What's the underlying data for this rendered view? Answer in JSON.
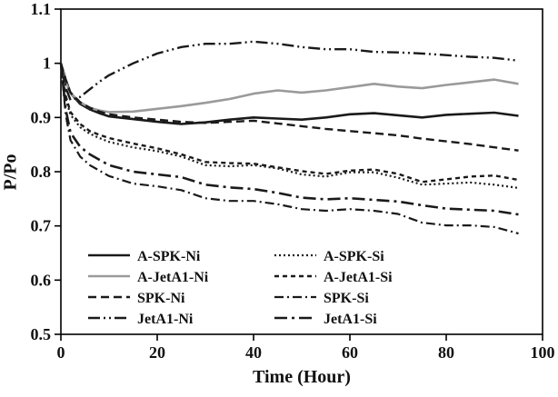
{
  "chart_data": {
    "type": "line",
    "title": "",
    "xlabel": "Time (Hour)",
    "ylabel": "P/Po",
    "xlim": [
      0,
      100
    ],
    "ylim": [
      0.5,
      1.1
    ],
    "xticks": [
      0,
      20,
      40,
      60,
      80,
      100
    ],
    "xtick_labels": [
      "0",
      "20",
      "40",
      "60",
      "80",
      "100"
    ],
    "yticks": [
      0.5,
      0.6,
      0.7,
      0.8,
      0.9,
      1,
      1.1
    ],
    "ytick_labels": [
      "0.5",
      "0.6",
      "0.7",
      "0.8",
      "0.9",
      "1",
      "1.1"
    ],
    "grid": false,
    "legend_position": "inside-bottom-left-two-columns",
    "axis_color": "#000000",
    "x": [
      0,
      1,
      2,
      4,
      6,
      8,
      10,
      15,
      20,
      25,
      30,
      35,
      40,
      45,
      50,
      55,
      60,
      65,
      70,
      75,
      80,
      85,
      90,
      95
    ],
    "series": [
      {
        "name": "A-SPK-Ni",
        "color": "#1a1a1a",
        "dash": [],
        "width": 2.6,
        "values": [
          1.0,
          0.97,
          0.945,
          0.925,
          0.915,
          0.908,
          0.902,
          0.897,
          0.892,
          0.888,
          0.891,
          0.896,
          0.9,
          0.898,
          0.896,
          0.9,
          0.906,
          0.908,
          0.904,
          0.9,
          0.905,
          0.907,
          0.909,
          0.903
        ]
      },
      {
        "name": "A-JetA1-Ni",
        "color": "#9a9a9a",
        "dash": [],
        "width": 2.6,
        "values": [
          1.0,
          0.965,
          0.945,
          0.928,
          0.918,
          0.913,
          0.91,
          0.911,
          0.916,
          0.921,
          0.927,
          0.934,
          0.944,
          0.95,
          0.946,
          0.95,
          0.956,
          0.962,
          0.957,
          0.954,
          0.96,
          0.965,
          0.97,
          0.962
        ]
      },
      {
        "name": "SPK-Ni",
        "color": "#1a1a1a",
        "dash": [
          9,
          5
        ],
        "width": 2.4,
        "values": [
          1.0,
          0.968,
          0.946,
          0.928,
          0.918,
          0.911,
          0.906,
          0.9,
          0.896,
          0.892,
          0.89,
          0.892,
          0.894,
          0.889,
          0.884,
          0.879,
          0.875,
          0.871,
          0.867,
          0.861,
          0.856,
          0.851,
          0.845,
          0.839
        ]
      },
      {
        "name": "JetA1-Ni",
        "color": "#1a1a1a",
        "dash": [
          13,
          4,
          2,
          4,
          2,
          4
        ],
        "width": 2.4,
        "values": [
          1.0,
          0.955,
          0.932,
          0.938,
          0.952,
          0.966,
          0.978,
          1.0,
          1.018,
          1.03,
          1.036,
          1.036,
          1.04,
          1.036,
          1.03,
          1.026,
          1.026,
          1.021,
          1.02,
          1.018,
          1.015,
          1.012,
          1.01,
          1.005
        ]
      },
      {
        "name": "A-SPK-Si",
        "color": "#1a1a1a",
        "dash": [
          2,
          3
        ],
        "width": 2.2,
        "values": [
          1.0,
          0.935,
          0.905,
          0.882,
          0.87,
          0.862,
          0.855,
          0.845,
          0.838,
          0.828,
          0.812,
          0.81,
          0.812,
          0.806,
          0.795,
          0.791,
          0.799,
          0.799,
          0.789,
          0.776,
          0.778,
          0.78,
          0.776,
          0.77
        ]
      },
      {
        "name": "A-JetA1-Si",
        "color": "#1a1a1a",
        "dash": [
          5,
          4
        ],
        "width": 2.4,
        "values": [
          1.0,
          0.94,
          0.91,
          0.888,
          0.875,
          0.868,
          0.862,
          0.852,
          0.843,
          0.832,
          0.818,
          0.816,
          0.815,
          0.808,
          0.801,
          0.796,
          0.802,
          0.804,
          0.796,
          0.781,
          0.786,
          0.791,
          0.793,
          0.785
        ]
      },
      {
        "name": "SPK-Si",
        "color": "#1a1a1a",
        "dash": [
          10,
          4,
          2,
          4
        ],
        "width": 2.2,
        "values": [
          1.0,
          0.905,
          0.858,
          0.828,
          0.812,
          0.802,
          0.792,
          0.778,
          0.773,
          0.766,
          0.751,
          0.746,
          0.746,
          0.74,
          0.731,
          0.728,
          0.731,
          0.728,
          0.722,
          0.706,
          0.701,
          0.701,
          0.698,
          0.686
        ]
      },
      {
        "name": "JetA1-Si",
        "color": "#1a1a1a",
        "dash": [
          14,
          5,
          3,
          5
        ],
        "width": 2.6,
        "values": [
          1.0,
          0.915,
          0.872,
          0.846,
          0.832,
          0.822,
          0.812,
          0.8,
          0.795,
          0.79,
          0.776,
          0.771,
          0.768,
          0.761,
          0.752,
          0.749,
          0.751,
          0.748,
          0.745,
          0.738,
          0.732,
          0.73,
          0.728,
          0.721
        ]
      }
    ]
  }
}
